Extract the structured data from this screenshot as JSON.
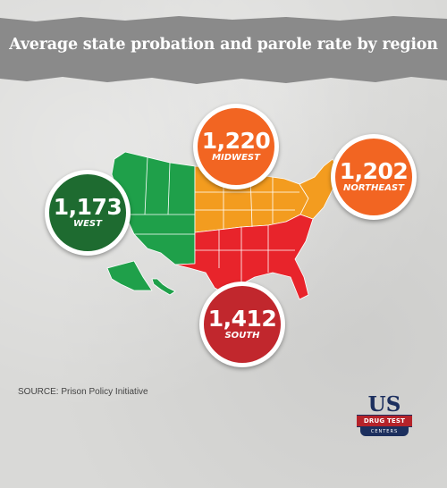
{
  "title": "Average state probation and parole rate by region",
  "regions": {
    "west": {
      "value": "1,173",
      "label": "WEST",
      "color": "#1e6b30",
      "map_color": "#1fa04a"
    },
    "midwest": {
      "value": "1,220",
      "label": "MIDWEST",
      "color": "#f26522",
      "map_color": "#f39c1f"
    },
    "northeast": {
      "value": "1,202",
      "label": "NORTHEAST",
      "color": "#f26522",
      "map_color": "#f39c1f"
    },
    "south": {
      "value": "1,412",
      "label": "SOUTH",
      "color": "#c1272d",
      "map_color": "#e8242b"
    }
  },
  "source": "SOURCE: Prison Policy Initiative",
  "logo": {
    "main": "US",
    "bar": "DRUG TEST",
    "sub": "CENTERS"
  }
}
